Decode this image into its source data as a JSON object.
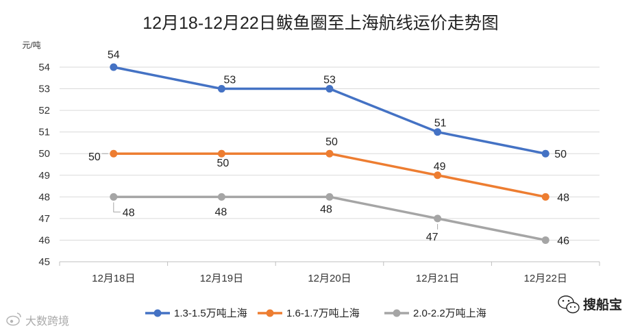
{
  "chart_data": {
    "type": "line",
    "title": "12月18-12月22日鲅鱼圈至上海航线运价走势图",
    "ylabel": "元/吨",
    "categories": [
      "12月18日",
      "12月19日",
      "12月20日",
      "12月21日",
      "12月22日"
    ],
    "ylim": [
      45,
      54
    ],
    "yticks": [
      "45",
      "46",
      "47",
      "48",
      "49",
      "50",
      "51",
      "52",
      "53",
      "54"
    ],
    "grid": true,
    "legend_position": "bottom",
    "series": [
      {
        "name": "1.3-1.5万吨上海",
        "values": [
          54,
          53,
          53,
          51,
          50
        ],
        "labels": [
          "54",
          "53",
          "53",
          "51",
          "50"
        ],
        "color": "#4472c4"
      },
      {
        "name": "1.6-1.7万吨上海",
        "values": [
          50,
          50,
          50,
          49,
          48
        ],
        "labels": [
          "50",
          "50",
          "50",
          "49",
          "48"
        ],
        "color": "#ed7d31"
      },
      {
        "name": "2.0-2.2万吨上海",
        "values": [
          48,
          48,
          48,
          47,
          46
        ],
        "labels": [
          "48",
          "48",
          "48",
          "47",
          "46"
        ],
        "color": "#a5a5a5"
      }
    ]
  },
  "watermark": {
    "text": "大数跨境",
    "icon": "weibo-icon"
  },
  "brand": {
    "text": "搜船宝",
    "icon": "wechat-icon"
  }
}
